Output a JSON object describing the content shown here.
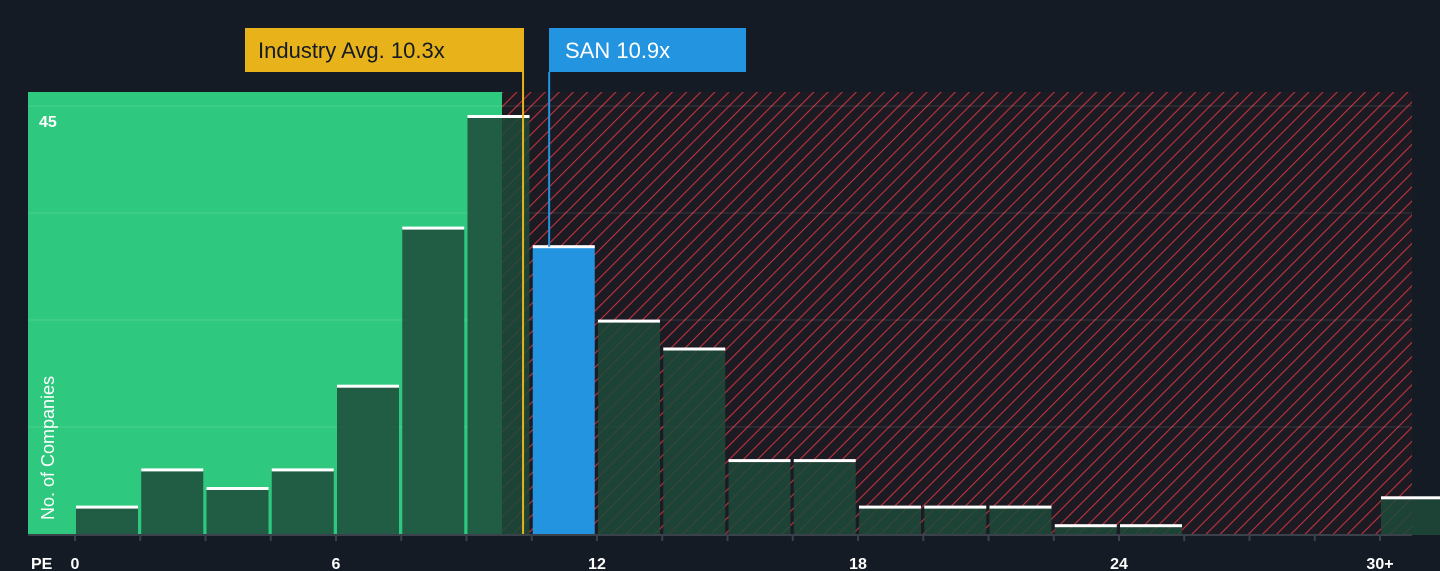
{
  "chart_data": {
    "type": "bar",
    "xlabel": "PE",
    "ylabel": "No. of Companies",
    "y_max_label": "45",
    "ylim": [
      0,
      47
    ],
    "x_ticks": [
      "0",
      "6",
      "12",
      "18",
      "24",
      "30+"
    ],
    "bins": [
      {
        "x": 0,
        "value": 3
      },
      {
        "x": 1.5,
        "value": 7
      },
      {
        "x": 3,
        "value": 5
      },
      {
        "x": 4.5,
        "value": 7
      },
      {
        "x": 6,
        "value": 16
      },
      {
        "x": 7.5,
        "value": 33
      },
      {
        "x": 9,
        "value": 45
      },
      {
        "x": 10.5,
        "value": 31
      },
      {
        "x": 12,
        "value": 23
      },
      {
        "x": 13.5,
        "value": 20
      },
      {
        "x": 15,
        "value": 8
      },
      {
        "x": 16.5,
        "value": 8
      },
      {
        "x": 18,
        "value": 3
      },
      {
        "x": 19.5,
        "value": 3
      },
      {
        "x": 21,
        "value": 3
      },
      {
        "x": 22.5,
        "value": 1
      },
      {
        "x": 24,
        "value": 1
      },
      {
        "x": 25.5,
        "value": 0
      },
      {
        "x": 27,
        "value": 0
      },
      {
        "x": 28.5,
        "value": 0
      },
      {
        "x": 30,
        "value": 4
      }
    ],
    "industry_avg": {
      "label": "Industry Avg. 10.3x",
      "value": 10.3
    },
    "company": {
      "label": "SAN 10.9x",
      "value": 10.9,
      "bin_x": 10.5
    },
    "colors": {
      "background": "#151b24",
      "undervalued_zone": "#2ec97e",
      "bar_fill": "#1d4a3a",
      "overvalued_hatch": "#c0343e",
      "company_bar": "#2394e0",
      "industry_callout": "#e8b21a",
      "bar_cap": "#ffffff"
    }
  }
}
